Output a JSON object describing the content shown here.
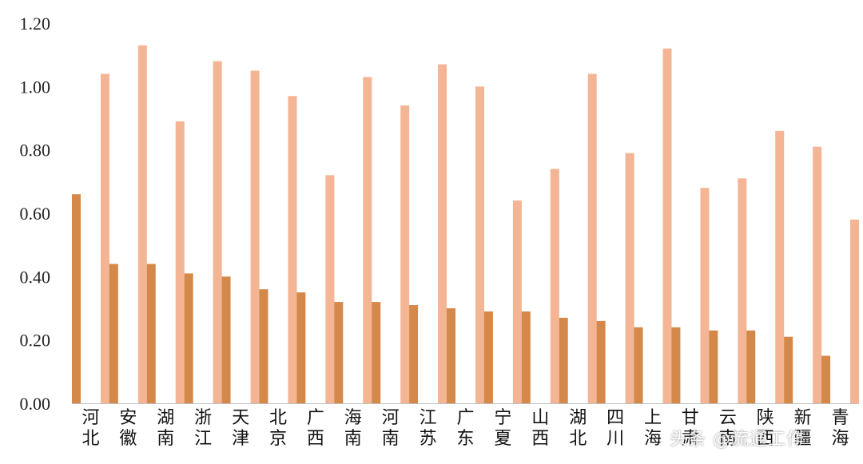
{
  "chart_data": {
    "type": "bar",
    "categories": [
      "河北",
      "安徽",
      "湖南",
      "浙江",
      "天津",
      "北京",
      "广西",
      "海南",
      "河南",
      "江苏",
      "广东",
      "宁夏",
      "山西",
      "湖北",
      "四川",
      "上海",
      "甘肃",
      "云南",
      "陕西",
      "新疆",
      "青海"
    ],
    "series": [
      {
        "values": [
          0.66,
          0.44,
          0.44,
          0.41,
          0.4,
          0.36,
          0.35,
          0.32,
          0.32,
          0.31,
          0.3,
          0.29,
          0.29,
          0.27,
          0.26,
          0.24,
          0.24,
          0.23,
          0.23,
          0.21,
          0.15
        ],
        "color": "#d4894a"
      },
      {
        "values": [
          1.04,
          1.13,
          0.89,
          1.08,
          1.05,
          0.97,
          0.72,
          1.03,
          0.94,
          1.07,
          1.0,
          0.64,
          0.74,
          1.04,
          0.79,
          1.12,
          0.68,
          0.71,
          0.86,
          0.81,
          0.58
        ],
        "color": "#f4b594"
      }
    ],
    "yticks": [
      "0.00",
      "0.20",
      "0.40",
      "0.60",
      "0.80",
      "1.00",
      "1.20"
    ],
    "ylim": [
      0,
      1.2
    ],
    "grid": false,
    "legend": "none"
  },
  "watermark": "头条 @流通工作"
}
